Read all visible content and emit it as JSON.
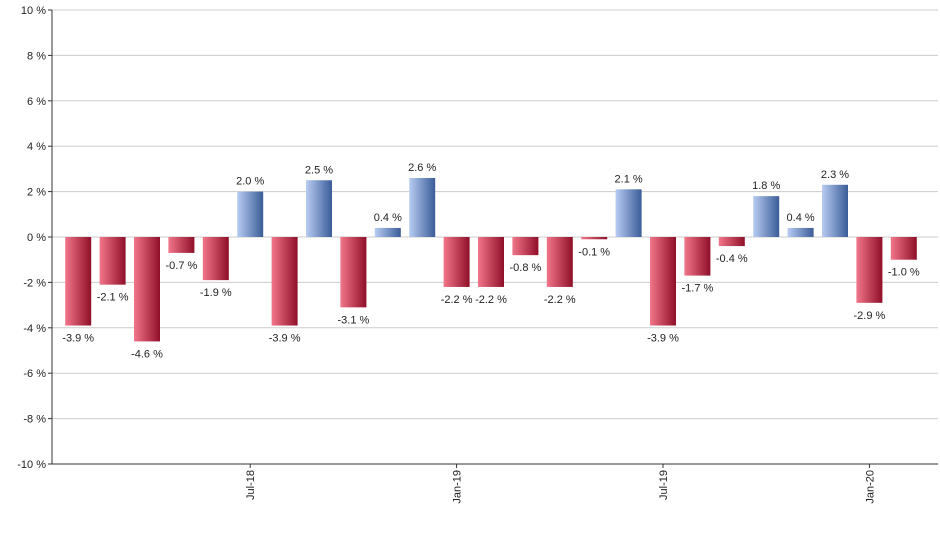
{
  "chart_data": {
    "type": "bar",
    "title": "",
    "xlabel": "",
    "ylabel": "",
    "ylim": [
      -10,
      10
    ],
    "y_ticks": [
      10,
      8,
      6,
      4,
      2,
      0,
      -2,
      -4,
      -6,
      -8,
      -10
    ],
    "y_tick_labels": [
      "10 %",
      "8 %",
      "6 %",
      "4 %",
      "2 %",
      "0 %",
      "-2 %",
      "-4 %",
      "-6 %",
      "-8 %",
      "-10 %"
    ],
    "grid": true,
    "value_unit_suffix": " %",
    "values": [
      -3.9,
      -2.1,
      -4.6,
      -0.7,
      -1.9,
      2.0,
      -3.9,
      2.5,
      -3.1,
      0.4,
      2.6,
      -2.2,
      -2.2,
      -0.8,
      -2.2,
      -0.1,
      2.1,
      -3.9,
      -1.7,
      -0.4,
      1.8,
      0.4,
      2.3,
      -2.9,
      -1.0
    ],
    "value_labels": [
      "-3.9 %",
      "-2.1 %",
      "-4.6 %",
      "-0.7 %",
      "-1.9 %",
      "2.0 %",
      "-3.9 %",
      "2.5 %",
      "-3.1 %",
      "0.4 %",
      "2.6 %",
      "-2.2 %",
      "-2.2 %",
      "-0.8 %",
      "-2.2 %",
      "-0.1 %",
      "2.1 %",
      "-3.9 %",
      "-1.7 %",
      "-0.4 %",
      "1.8 %",
      "0.4 %",
      "2.3 %",
      "-2.9 %",
      "-1.0 %"
    ],
    "x_tick_labels": [
      {
        "index": 5,
        "label": "Jul-18"
      },
      {
        "index": 11,
        "label": "Jan-19"
      },
      {
        "index": 17,
        "label": "Jul-19"
      },
      {
        "index": 23,
        "label": "Jan-20"
      }
    ],
    "colors": {
      "positive_light": "#b8ccf2",
      "positive_dark": "#3a5c98",
      "negative_light": "#f2768a",
      "negative_dark": "#8f0f28",
      "grid": "#cccccc",
      "axis": "#333333"
    }
  }
}
